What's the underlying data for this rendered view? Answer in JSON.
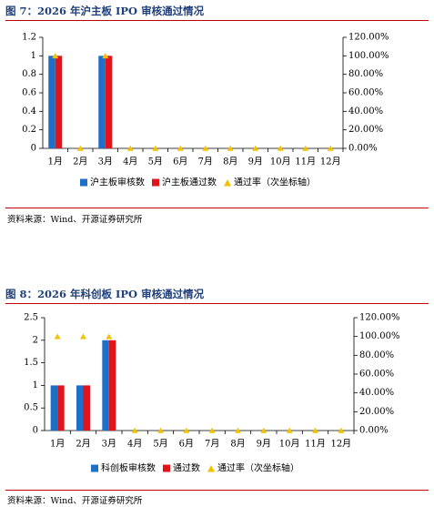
{
  "colors": {
    "bar1": "#1f6fc6",
    "bar2": "#e0141a",
    "rate": "#f2c200"
  },
  "figures": [
    {
      "title": "图 7：2026 年沪主板 IPO 审核通过情况",
      "source": "资料来源：Wind、开源证券研究所",
      "chart_data": {
        "type": "bar",
        "categories": [
          "1月",
          "2月",
          "3月",
          "4月",
          "5月",
          "6月",
          "7月",
          "8月",
          "9月",
          "10月",
          "11月",
          "12月"
        ],
        "series": [
          {
            "name": "沪主板审核数",
            "values": [
              1,
              0,
              1,
              0,
              0,
              0,
              0,
              0,
              0,
              0,
              0,
              0
            ]
          },
          {
            "name": "沪主板通过数",
            "values": [
              1,
              0,
              1,
              0,
              0,
              0,
              0,
              0,
              0,
              0,
              0,
              0
            ]
          },
          {
            "name": "通过率（次坐标轴）",
            "values": [
              1,
              0,
              1,
              0,
              0,
              0,
              0,
              0,
              0,
              0,
              0,
              0
            ],
            "axis": "secondary",
            "marker": "triangle"
          }
        ],
        "ylim": [
          0,
          1.2
        ],
        "yticks": [
          "0",
          "0.2",
          "0.4",
          "0.6",
          "0.8",
          "1",
          "1.2"
        ],
        "y2lim": [
          0,
          1.2
        ],
        "y2ticks": [
          "0.00%",
          "20.00%",
          "40.00%",
          "60.00%",
          "80.00%",
          "100.00%",
          "120.00%"
        ],
        "legend": "bottom"
      }
    },
    {
      "title": "图 8：2026 年科创板 IPO 审核通过情况",
      "source": "资料来源：Wind、开源证券研究所",
      "chart_data": {
        "type": "bar",
        "categories": [
          "1月",
          "2月",
          "3月",
          "4月",
          "5月",
          "6月",
          "7月",
          "8月",
          "9月",
          "10月",
          "11月",
          "12月"
        ],
        "series": [
          {
            "name": "科创板审核数",
            "values": [
              1,
              1,
              2,
              0,
              0,
              0,
              0,
              0,
              0,
              0,
              0,
              0
            ]
          },
          {
            "name": "通过数",
            "values": [
              1,
              1,
              2,
              0,
              0,
              0,
              0,
              0,
              0,
              0,
              0,
              0
            ]
          },
          {
            "name": "通过率（次坐标轴）",
            "values": [
              1,
              1,
              1,
              0,
              0,
              0,
              0,
              0,
              0,
              0,
              0,
              0
            ],
            "axis": "secondary",
            "marker": "triangle"
          }
        ],
        "ylim": [
          0,
          2.5
        ],
        "yticks": [
          "0",
          "0.5",
          "1",
          "1.5",
          "2",
          "2.5"
        ],
        "y2lim": [
          0,
          1.2
        ],
        "y2ticks": [
          "0.00%",
          "20.00%",
          "40.00%",
          "60.00%",
          "80.00%",
          "100.00%",
          "120.00%"
        ],
        "legend": "bottom"
      }
    }
  ]
}
